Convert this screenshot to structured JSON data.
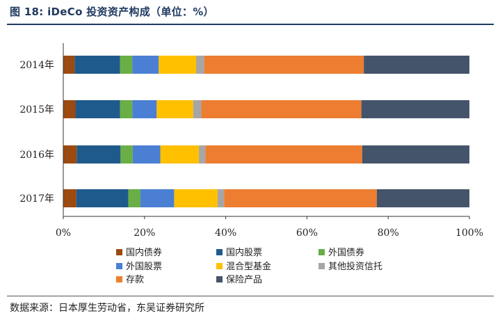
{
  "figure": {
    "title": "图 18:  iDeCo  投资资产构成（单位：%）",
    "source": "数据来源：日本厚生劳动省，东吴证券研究所"
  },
  "chart_data": {
    "type": "bar",
    "orientation": "horizontal",
    "stacked": true,
    "title": "iDeCo 投资资产构成（单位：%）",
    "categories": [
      "2014年",
      "2015年",
      "2016年",
      "2017年"
    ],
    "xlim": [
      0,
      100
    ],
    "xticks": [
      "0%",
      "20%",
      "40%",
      "60%",
      "80%",
      "100%"
    ],
    "xlabel": "",
    "ylabel": "",
    "grid": false,
    "legend_position": "bottom",
    "series": [
      {
        "name": "国内债券",
        "color": "#9c4a10",
        "values": [
          2.8,
          3.0,
          3.3,
          3.2
        ]
      },
      {
        "name": "国内股票",
        "color": "#1f5a8c",
        "values": [
          11.2,
          11.0,
          10.8,
          12.8
        ]
      },
      {
        "name": "外国债券",
        "color": "#6aae45",
        "values": [
          3.0,
          3.0,
          3.0,
          3.0
        ]
      },
      {
        "name": "外国股票",
        "color": "#4a7fd4",
        "values": [
          6.5,
          6.0,
          6.8,
          8.3
        ]
      },
      {
        "name": "混合型基金",
        "color": "#ffc000",
        "values": [
          9.2,
          9.0,
          9.5,
          10.7
        ]
      },
      {
        "name": "其他投资信托",
        "color": "#a6a6a6",
        "values": [
          2.0,
          2.0,
          1.6,
          1.6
        ]
      },
      {
        "name": "存款",
        "color": "#ed7d31",
        "values": [
          39.3,
          39.4,
          38.6,
          37.6
        ]
      },
      {
        "name": "保险产品",
        "color": "#44546a",
        "values": [
          26.0,
          26.6,
          26.4,
          22.8
        ]
      }
    ]
  }
}
